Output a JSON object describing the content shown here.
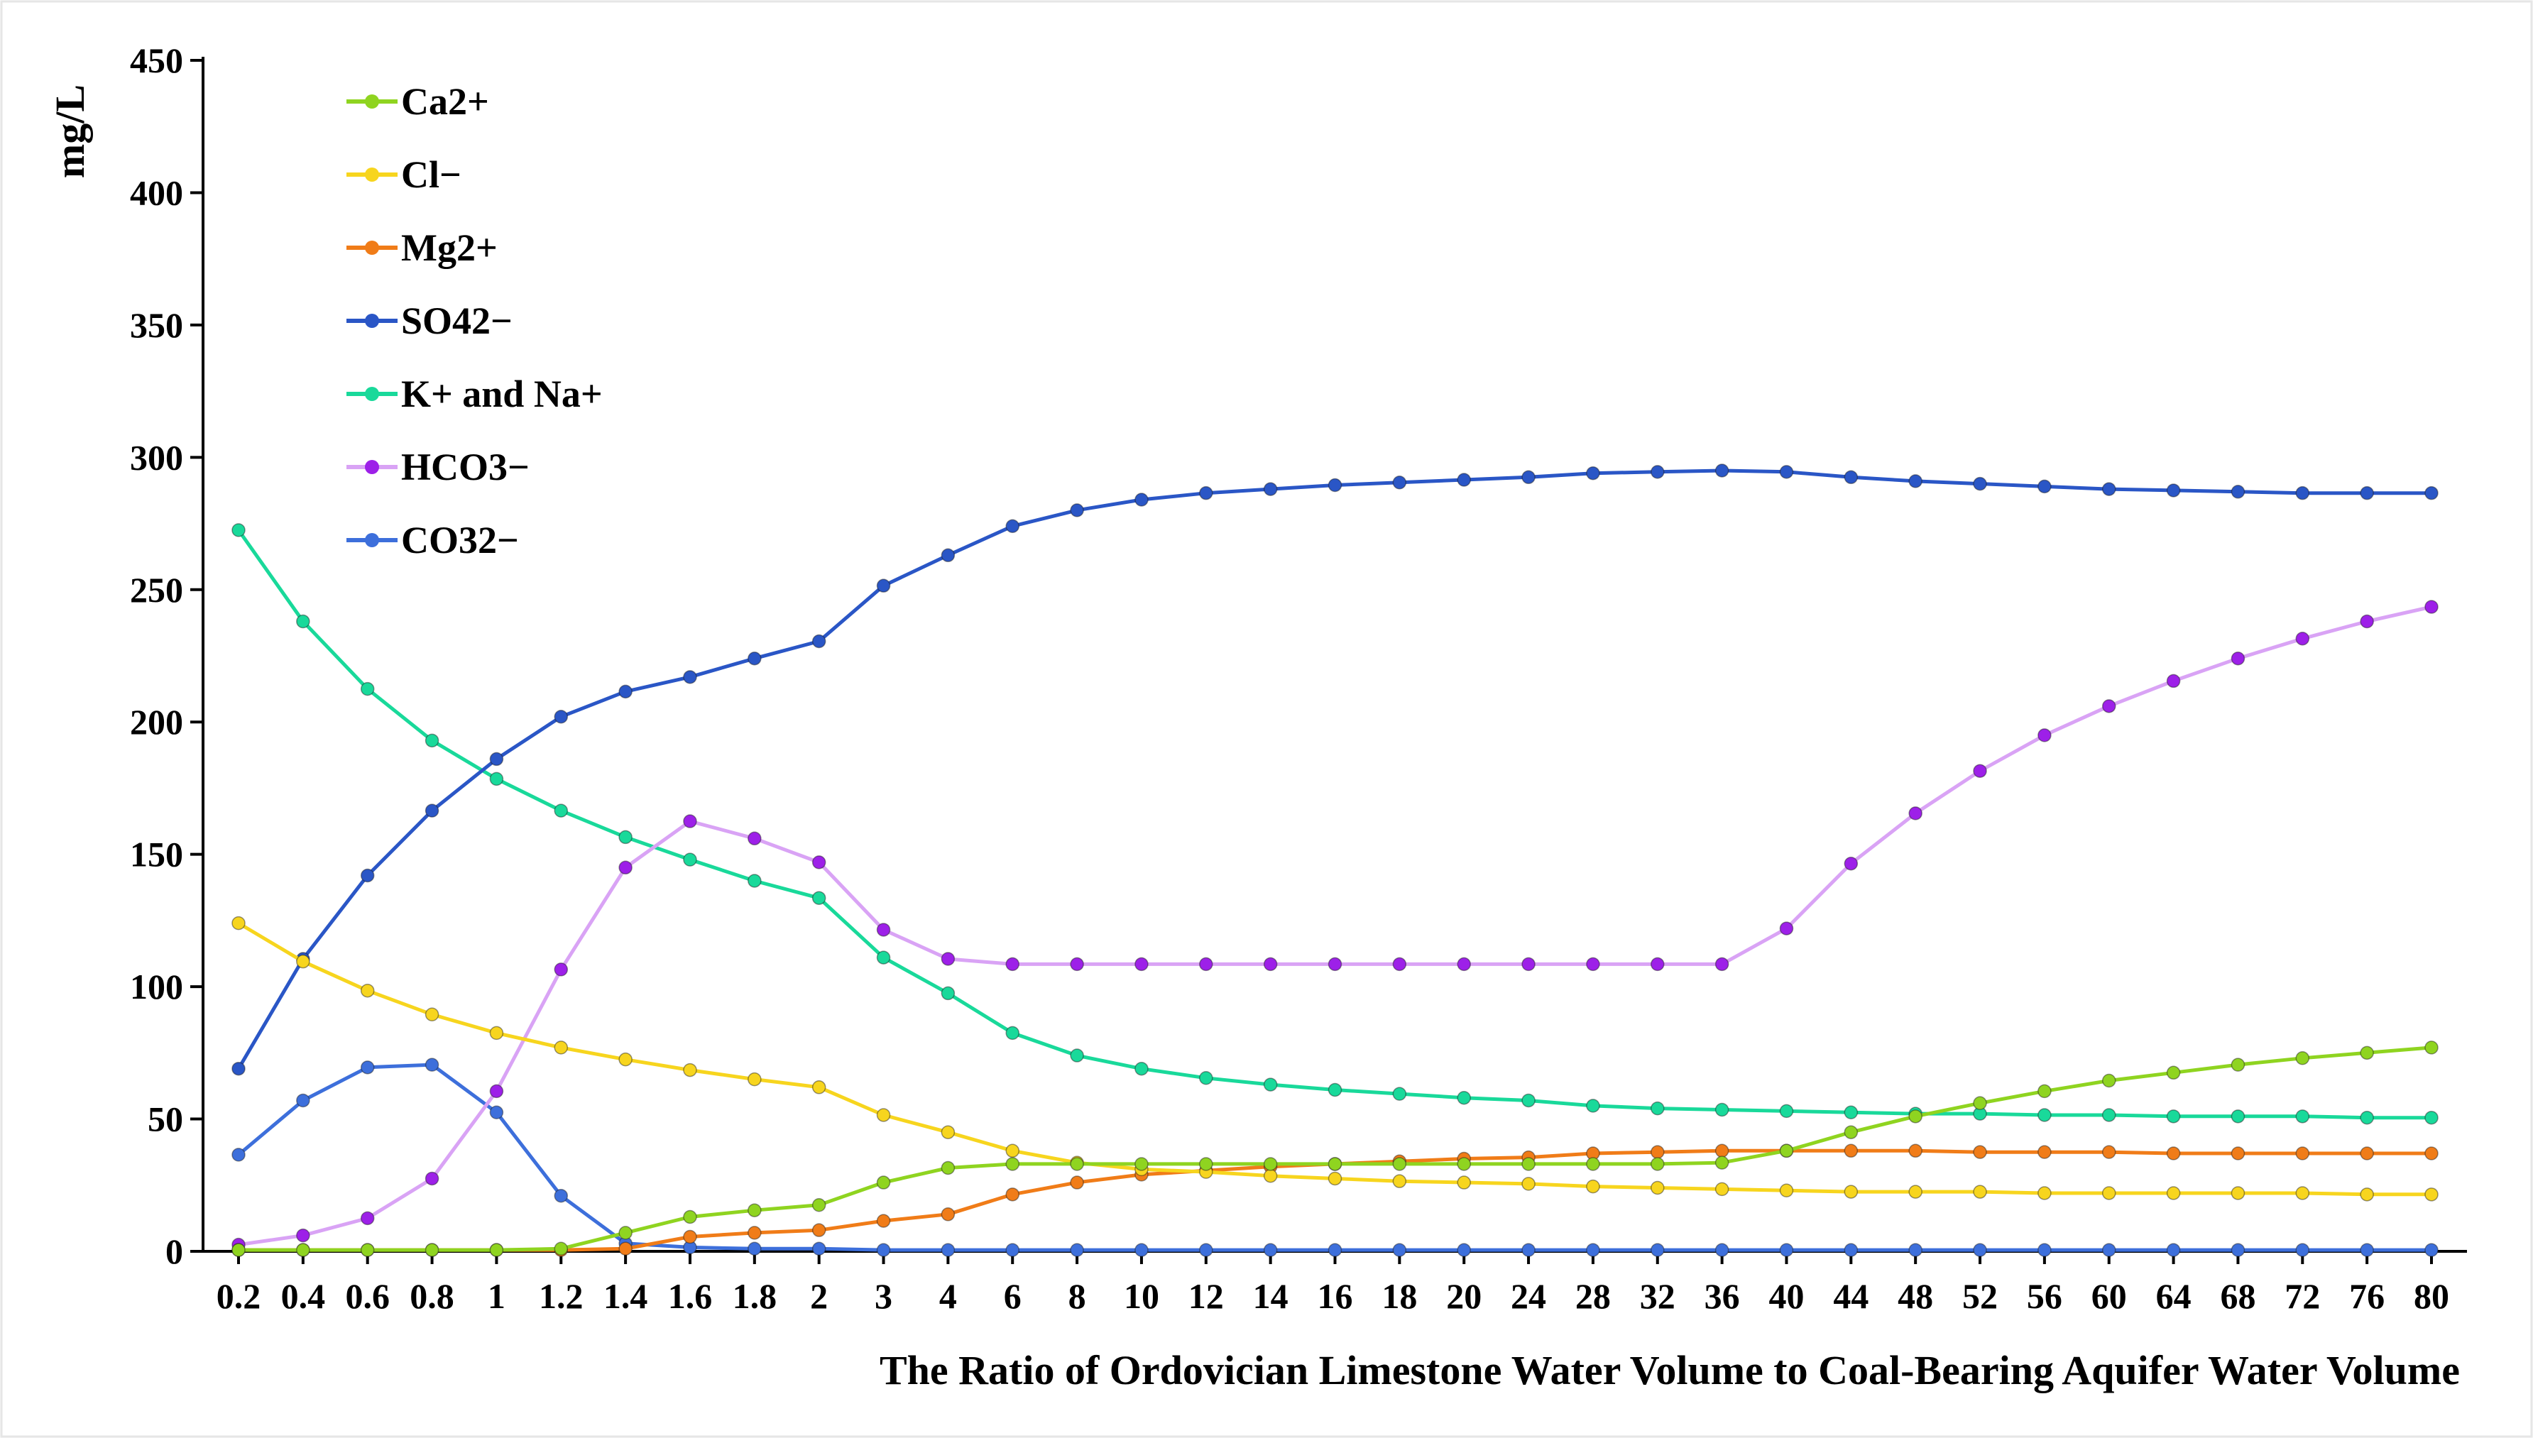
{
  "chart_data": {
    "type": "line",
    "title": "",
    "xlabel": "The Ratio of Ordovician Limestone Water Volume to Coal-Bearing Aquifer Water Volume",
    "ylabel": "mg/L",
    "ylim": [
      0,
      450
    ],
    "yticks": [
      0,
      50,
      100,
      150,
      200,
      250,
      300,
      350,
      400,
      450
    ],
    "grid": false,
    "legend_position": "top-left",
    "categories": [
      "0.2",
      "0.4",
      "0.6",
      "0.8",
      "1",
      "1.2",
      "1.4",
      "1.6",
      "1.8",
      "2",
      "3",
      "4",
      "6",
      "8",
      "10",
      "12",
      "14",
      "16",
      "18",
      "20",
      "24",
      "28",
      "32",
      "36",
      "40",
      "44",
      "48",
      "52",
      "56",
      "60",
      "64",
      "68",
      "72",
      "76",
      "80"
    ],
    "series": [
      {
        "name": "Ca2+",
        "color": "#8fd420",
        "values": [
          0.5,
          0.5,
          0.5,
          0.5,
          0.5,
          1,
          7,
          13,
          15.5,
          17.5,
          26,
          31.5,
          33,
          33,
          33,
          33,
          33,
          33,
          33,
          33,
          33,
          33,
          33,
          33.5,
          38,
          45,
          51,
          56,
          60.5,
          64.5,
          67.5,
          70.5,
          73,
          75,
          77
        ]
      },
      {
        "name": "Cl−",
        "color": "#f7d51e",
        "values": [
          124,
          109.5,
          98.5,
          89.5,
          82.5,
          77,
          72.5,
          68.5,
          65,
          62,
          51.5,
          45,
          38,
          33.5,
          31,
          30,
          28.5,
          27.5,
          26.5,
          26,
          25.5,
          24.5,
          24,
          23.5,
          23,
          22.5,
          22.5,
          22.5,
          22,
          22,
          22,
          22,
          22,
          21.5,
          21.5
        ]
      },
      {
        "name": "Mg2+",
        "color": "#f07c18",
        "values": [
          0.5,
          0.5,
          0.5,
          0.5,
          0.5,
          0.5,
          1,
          5.5,
          7,
          8,
          11.5,
          14,
          21.5,
          26,
          29,
          30.5,
          32,
          33,
          34,
          35,
          35.5,
          37,
          37.5,
          38,
          38,
          38,
          38,
          37.5,
          37.5,
          37.5,
          37,
          37,
          37,
          37,
          37
        ]
      },
      {
        "name": "SO42−",
        "color": "#2a56c6",
        "values": [
          69,
          110.5,
          142,
          166.5,
          186,
          202,
          211.5,
          217,
          224,
          230.5,
          251.5,
          263,
          274,
          280,
          284,
          286.5,
          288,
          289.5,
          290.5,
          291.5,
          292.5,
          294,
          294.5,
          295,
          294.5,
          292.5,
          291,
          290,
          289,
          288,
          287.5,
          287,
          286.5,
          286.5,
          286.5
        ]
      },
      {
        "name": "K+ and Na+",
        "color": "#19d99a",
        "values": [
          272.5,
          238,
          212.5,
          193,
          178.5,
          166.5,
          156.5,
          148,
          140,
          133.5,
          111,
          97.5,
          82.5,
          74,
          69,
          65.5,
          63,
          61,
          59.5,
          58,
          57,
          55,
          54,
          53.5,
          53,
          52.5,
          52,
          52,
          51.5,
          51.5,
          51,
          51,
          51,
          50.5,
          50.5
        ]
      },
      {
        "name": "HCO3−",
        "color": "#d9a3f5",
        "marker_color": "#9d20e8",
        "values": [
          2.5,
          6,
          12.5,
          27.5,
          60.5,
          106.5,
          145,
          162.5,
          156,
          147,
          121.5,
          110.5,
          108.5,
          108.5,
          108.5,
          108.5,
          108.5,
          108.5,
          108.5,
          108.5,
          108.5,
          108.5,
          108.5,
          108.5,
          122,
          146.5,
          165.5,
          181.5,
          195,
          206,
          215.5,
          224,
          231.5,
          238,
          243.5
        ]
      },
      {
        "name": "CO32−",
        "color": "#3d6fdb",
        "values": [
          36.5,
          57,
          69.5,
          70.5,
          52.5,
          21,
          3,
          1.5,
          1,
          1,
          0.5,
          0.5,
          0.5,
          0.5,
          0.5,
          0.5,
          0.5,
          0.5,
          0.5,
          0.5,
          0.5,
          0.5,
          0.5,
          0.5,
          0.5,
          0.5,
          0.5,
          0.5,
          0.5,
          0.5,
          0.5,
          0.5,
          0.5,
          0.5,
          0.5
        ]
      }
    ]
  }
}
